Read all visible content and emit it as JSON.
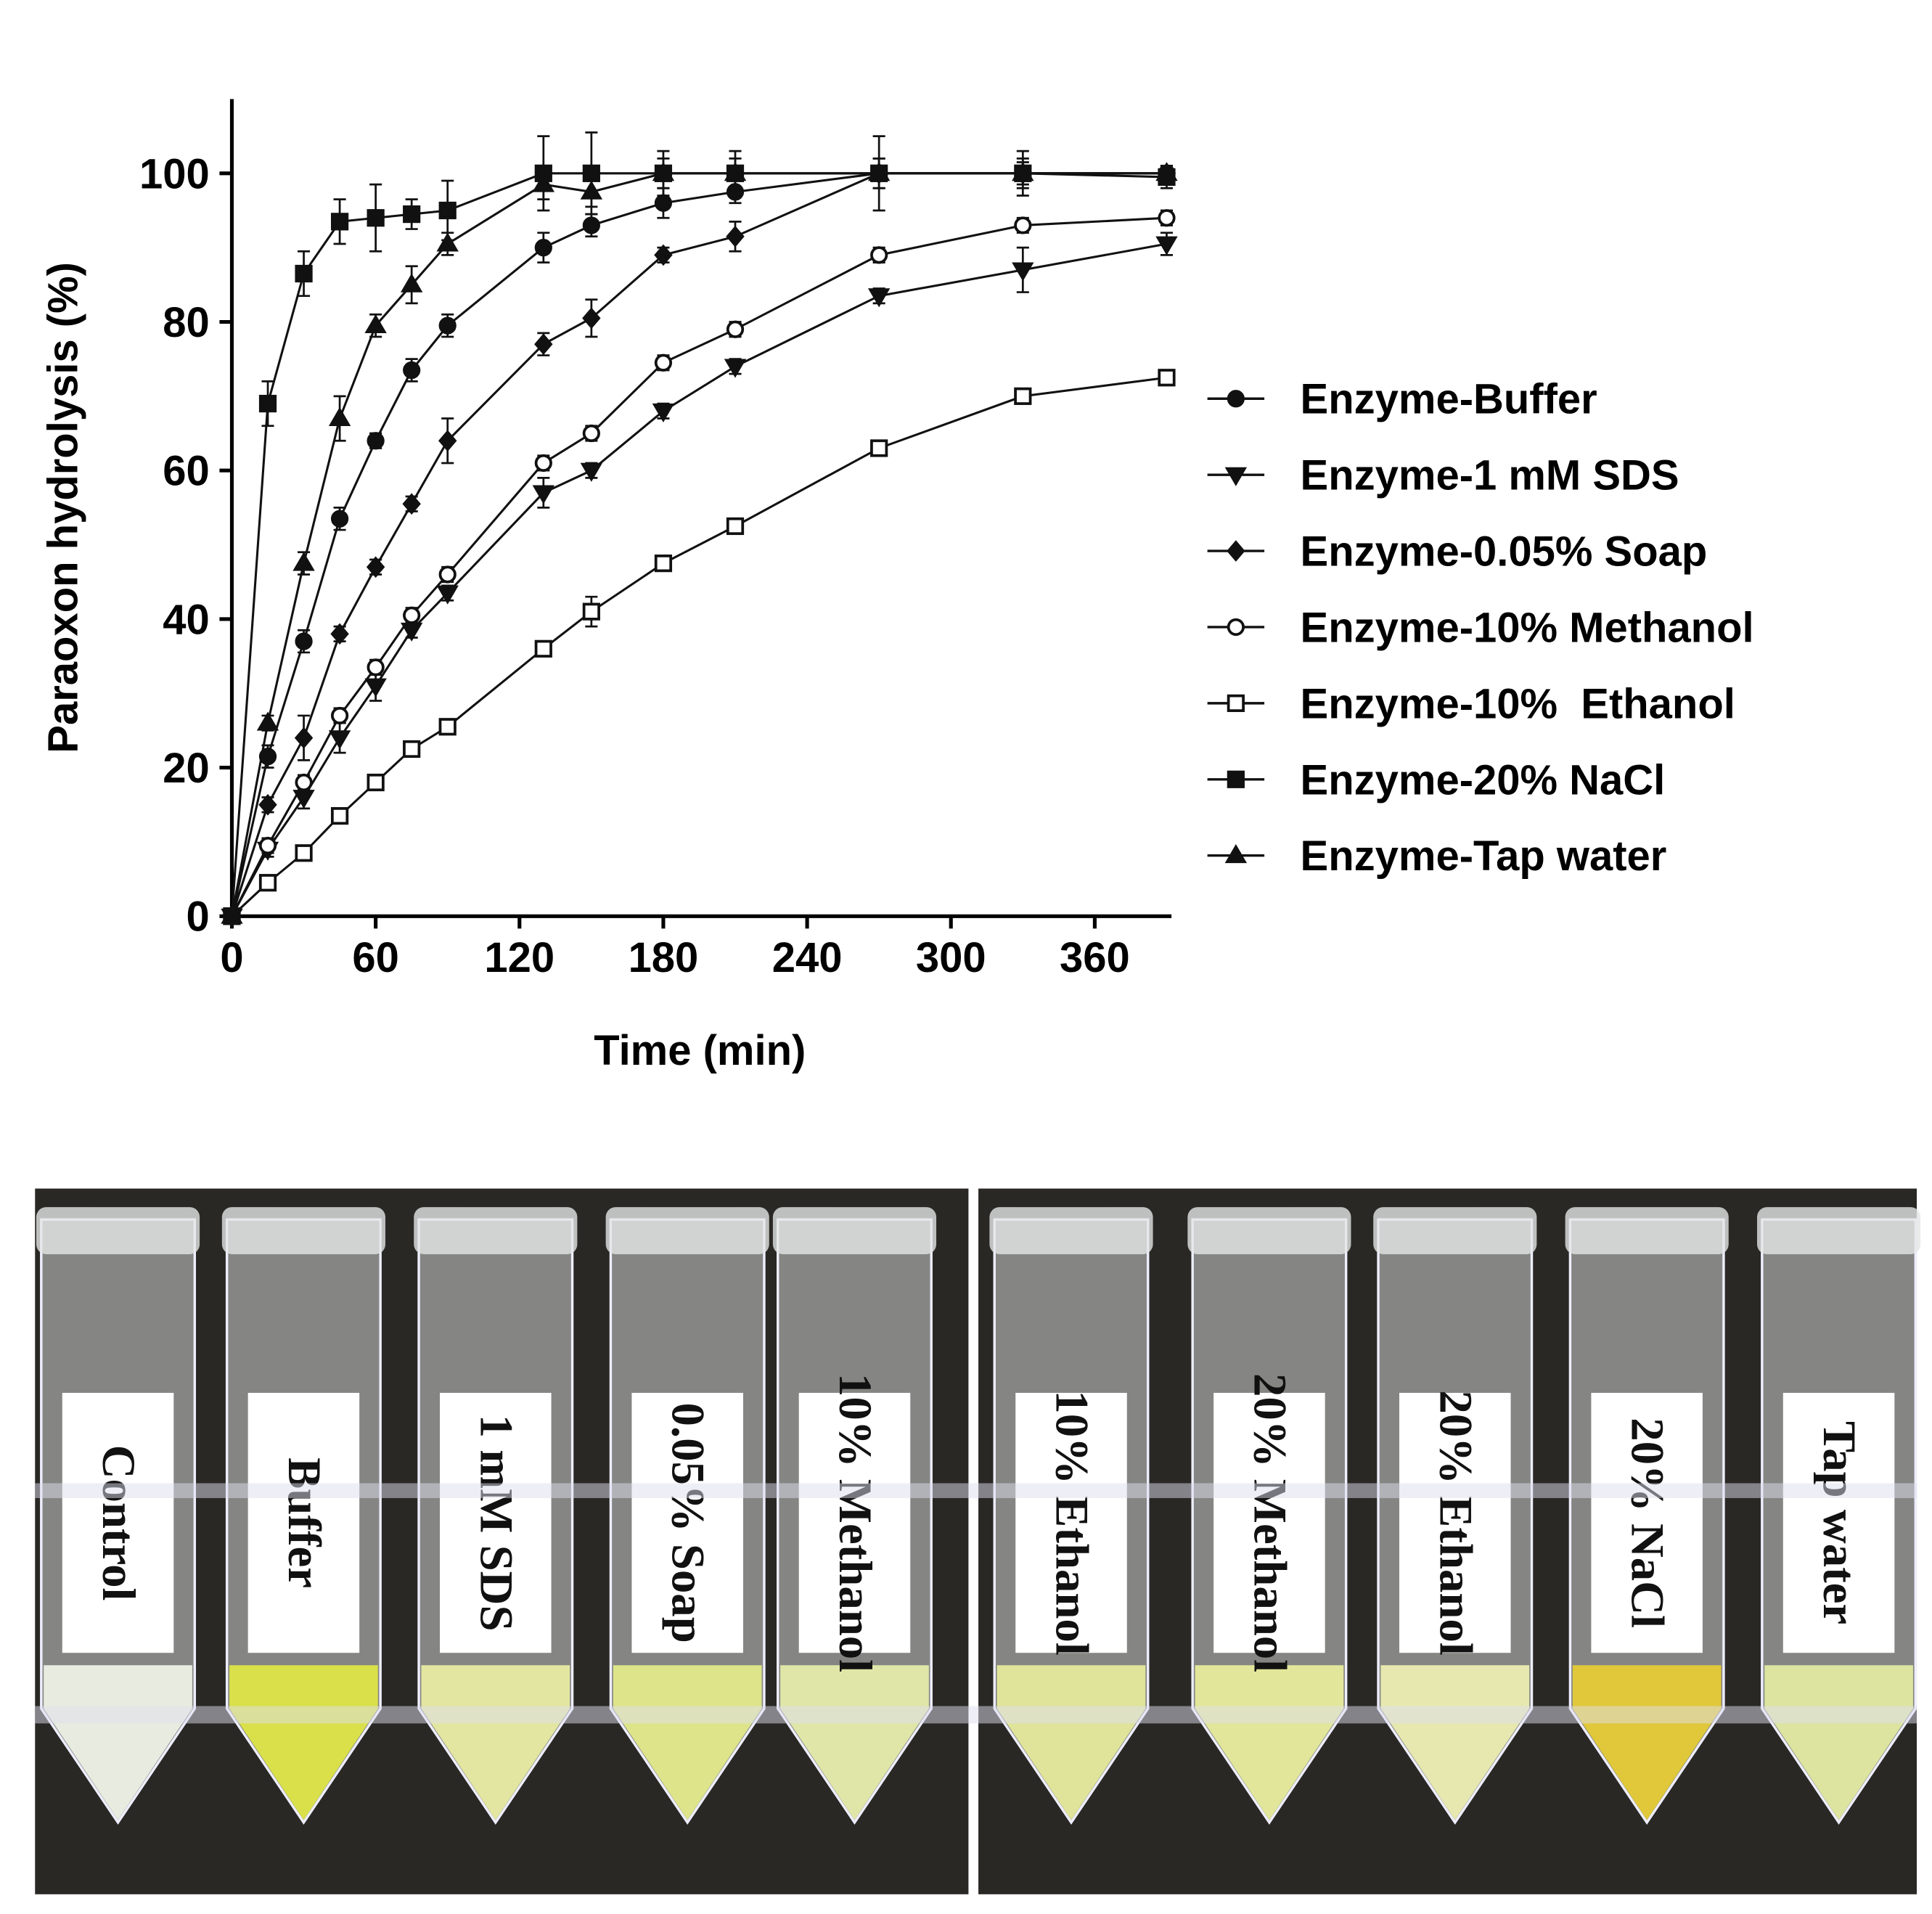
{
  "chart_data": {
    "type": "line",
    "x_label": "Time (min)",
    "y_label": "Paraoxon hydrolysis (%)",
    "x": [
      0,
      15,
      30,
      45,
      60,
      75,
      90,
      130,
      150,
      180,
      210,
      270,
      330,
      390
    ],
    "xlim": [
      0,
      392
    ],
    "ylim": [
      0,
      110
    ],
    "xticks": [
      0,
      60,
      120,
      180,
      240,
      300,
      360
    ],
    "yticks": [
      0,
      20,
      40,
      60,
      80,
      100
    ],
    "legend": "right",
    "series": [
      {
        "name": "Enzyme-Buffer",
        "color": "#111",
        "marker": "circle",
        "values": [
          0,
          21.5,
          37,
          53.5,
          64,
          73.5,
          79.5,
          90,
          93,
          96,
          97.5,
          100,
          100,
          100
        ],
        "errors": [
          null,
          1.5,
          1.5,
          1.5,
          1,
          1.5,
          1.5,
          2,
          1.5,
          2,
          1.5,
          2,
          1.5,
          1
        ]
      },
      {
        "name": "Enzyme-1 mM SDS",
        "color": "#111",
        "marker": "triangle-down",
        "values": [
          0,
          9,
          16,
          24,
          31,
          38.5,
          43.5,
          57,
          60,
          68,
          74,
          83.5,
          87,
          90.5
        ],
        "errors": [
          null,
          1,
          1.5,
          2,
          2,
          1,
          1,
          2,
          1,
          1,
          1,
          1,
          3,
          1.5
        ]
      },
      {
        "name": "Enzyme-0.05% Soap",
        "color": "#111",
        "marker": "diamond",
        "values": [
          0,
          15,
          24,
          38,
          47,
          55.5,
          64,
          77,
          80.5,
          89,
          91.5,
          100,
          100,
          100
        ],
        "errors": [
          null,
          1,
          3,
          1,
          1,
          1,
          3,
          1.5,
          2.5,
          1,
          2,
          1,
          1,
          1
        ]
      },
      {
        "name": "Enzyme-10% Methanol",
        "color": "#111",
        "marker": "circle-open",
        "values": [
          0,
          9.5,
          18,
          27,
          33.5,
          40.5,
          46,
          61,
          65,
          74.5,
          79,
          89,
          93,
          94
        ],
        "errors": [
          null,
          1,
          1,
          1,
          1,
          1,
          1,
          1,
          1,
          1,
          1,
          1,
          1,
          1
        ]
      },
      {
        "name": "Enzyme-10%  Ethanol",
        "color": "#111",
        "marker": "square-open",
        "values": [
          0,
          4.5,
          8.5,
          13.5,
          18,
          22.5,
          25.5,
          36,
          41,
          47.5,
          52.5,
          63,
          70,
          72.5
        ],
        "errors": [
          null,
          1,
          1,
          1,
          1,
          1,
          1,
          1,
          2,
          1,
          1,
          1,
          1,
          1
        ]
      },
      {
        "name": "Enzyme-20% NaCl",
        "color": "#111",
        "marker": "square",
        "values": [
          0,
          69,
          86.5,
          93.5,
          94,
          94.5,
          95,
          100,
          100,
          100,
          100,
          100,
          100,
          99.5
        ],
        "errors": [
          null,
          3,
          3,
          3,
          4.5,
          2,
          4,
          5,
          5.5,
          3,
          3,
          5,
          3,
          1.5
        ]
      },
      {
        "name": "Enzyme-Tap water",
        "color": "#111",
        "marker": "triangle",
        "values": [
          0,
          26,
          47.5,
          67,
          79.5,
          85,
          90.5,
          98.5,
          97.5,
          100,
          100,
          100,
          100,
          100
        ],
        "errors": [
          null,
          1,
          1.5,
          3,
          1.5,
          2.5,
          1.5,
          2,
          2,
          2,
          2,
          2,
          2,
          1
        ]
      }
    ]
  },
  "photo": {
    "tubes": [
      {
        "label": "Control",
        "liquid": "#e8ece0"
      },
      {
        "label": "Buffer",
        "liquid": "#d9e04a"
      },
      {
        "label": "1 mM SDS",
        "liquid": "#e3e6a0"
      },
      {
        "label": "0.05% Soap",
        "liquid": "#dde48a"
      },
      {
        "label": "10% Methanol",
        "liquid": "#e0e6a8"
      },
      {
        "label": "10% Ethanol",
        "liquid": "#dfe49a"
      },
      {
        "label": "20% Methanol",
        "liquid": "#e2e69a"
      },
      {
        "label": "20% Ethanol",
        "liquid": "#e6e8b0"
      },
      {
        "label": "20% NaCl",
        "liquid": "#e0c83a"
      },
      {
        "label": "Tap water",
        "liquid": "#dce4a0"
      }
    ]
  }
}
